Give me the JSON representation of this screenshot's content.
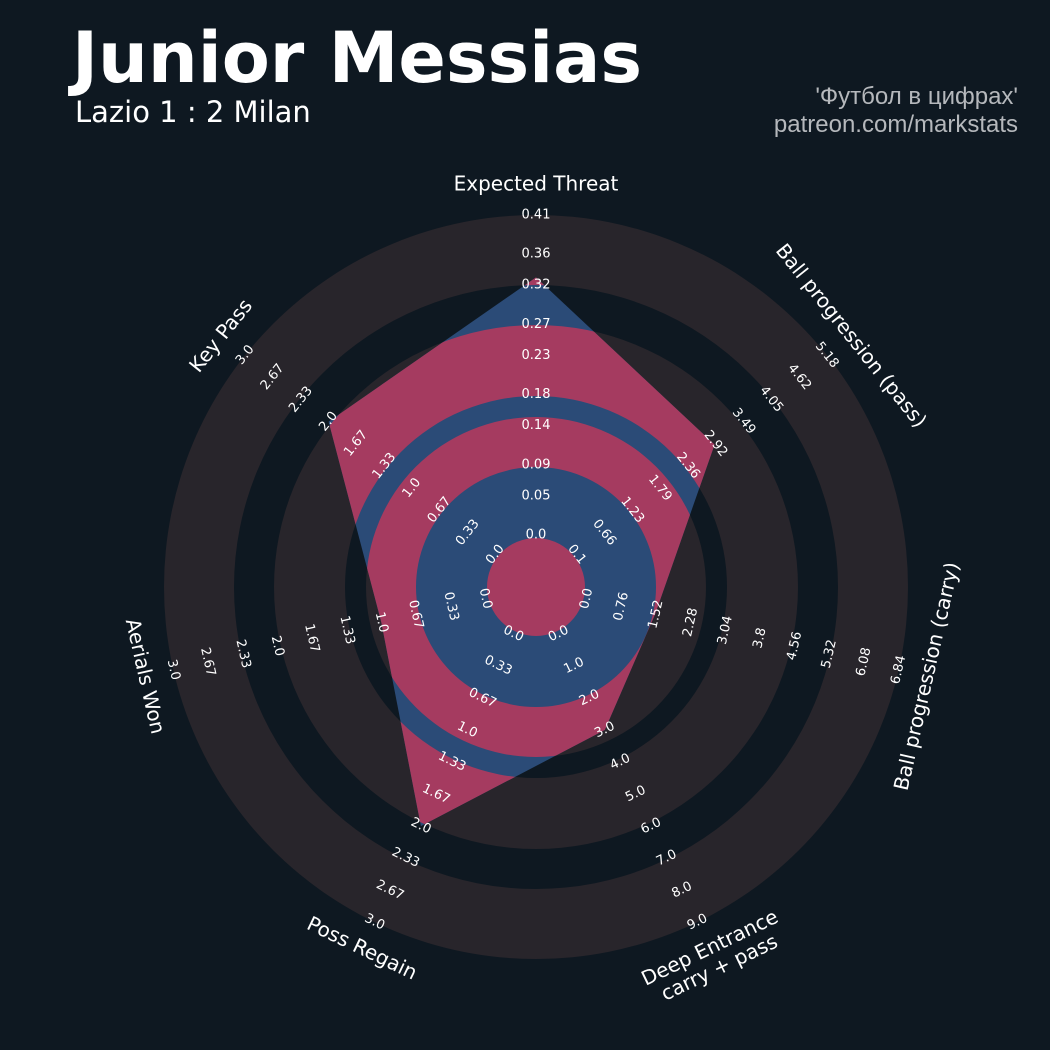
{
  "chart_data": {
    "type": "radar",
    "title": "Junior Messias",
    "subtitle": "Lazio 1 : 2 Milan",
    "credits": [
      "'Футбол в цифрах'",
      "patreon.com/markstats"
    ],
    "colors": {
      "background": "#0e1821",
      "ring": "#28252b",
      "polygon": "#2b4b77",
      "polygon_ring": "#a53b60"
    },
    "params": [
      {
        "name": "Expected Threat",
        "lim": [
          0,
          0.41
        ],
        "value": 0.33,
        "ticks": [
          {
            "value": 0,
            "label": "0.0"
          },
          0.05,
          0.09,
          0.14,
          0.18,
          0.23,
          0.27,
          0.32,
          0.36,
          0.41
        ]
      },
      {
        "name": "Ball progression (pass)",
        "lim": [
          0.1,
          5.18
        ],
        "value": 2.9,
        "ticks": [
          0.1,
          0.66,
          1.23,
          1.79,
          2.36,
          2.92,
          3.49,
          4.05,
          4.62,
          5.18
        ]
      },
      {
        "name": "Ball progression (carry)",
        "lim": [
          0,
          6.84
        ],
        "value": 1.5,
        "ticks": [
          {
            "value": 0,
            "label": "0.0"
          },
          0.76,
          1.52,
          2.28,
          3.04,
          3.8,
          4.56,
          5.32,
          6.08,
          6.84
        ]
      },
      {
        "name": "Deep Entrance\ncarry + pass",
        "lim": [
          0,
          9
        ],
        "value": 3,
        "ticks": [
          {
            "value": 0,
            "label": "0.0"
          },
          {
            "value": 1,
            "label": "1.0"
          },
          {
            "value": 2,
            "label": "2.0"
          },
          {
            "value": 3,
            "label": "3.0"
          },
          {
            "value": 4,
            "label": "4.0"
          },
          {
            "value": 5,
            "label": "5.0"
          },
          {
            "value": 6,
            "label": "6.0"
          },
          {
            "value": 7,
            "label": "7.0"
          },
          {
            "value": 8,
            "label": "8.0"
          },
          {
            "value": 9,
            "label": "9.0"
          }
        ]
      },
      {
        "name": "Poss Regain",
        "lim": [
          0,
          3
        ],
        "value": 2,
        "ticks": [
          {
            "value": 0,
            "label": "0.0"
          },
          0.33,
          0.67,
          {
            "value": 1,
            "label": "1.0"
          },
          1.33,
          1.67,
          {
            "value": 2,
            "label": "2.0"
          },
          2.33,
          2.67,
          {
            "value": 3,
            "label": "3.0"
          }
        ]
      },
      {
        "name": "Aerials Won",
        "lim": [
          0,
          3
        ],
        "value": 1,
        "ticks": [
          {
            "value": 0,
            "label": "0.0"
          },
          0.33,
          0.67,
          {
            "value": 1,
            "label": "1.0"
          },
          1.33,
          1.67,
          {
            "value": 2,
            "label": "2.0"
          },
          2.33,
          2.67,
          {
            "value": 3,
            "label": "3.0"
          }
        ]
      },
      {
        "name": "Key Pass",
        "lim": [
          0,
          3
        ],
        "value": 2,
        "ticks": [
          {
            "value": 0,
            "label": "0.0"
          },
          0.33,
          0.67,
          {
            "value": 1,
            "label": "1.0"
          },
          1.33,
          1.67,
          {
            "value": 2,
            "label": "2.0"
          },
          2.33,
          2.67,
          {
            "value": 3,
            "label": "3.0"
          }
        ]
      }
    ]
  }
}
